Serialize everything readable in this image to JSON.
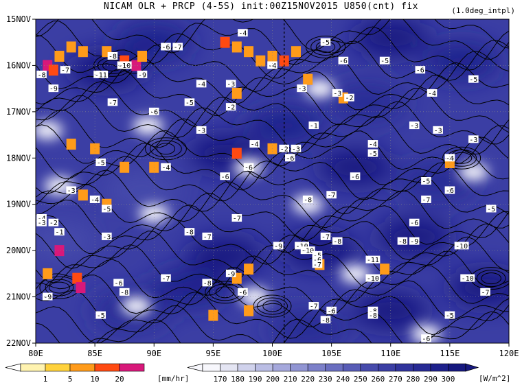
{
  "title": "NICAM  OLR + PRCP (4-5S) init:00Z15NOV2015 U850(cnt) fix",
  "subtitle": "(1.0deg_intpl)",
  "chart_data": {
    "type": "heatmap",
    "x_axis": {
      "range": [
        80,
        120
      ],
      "ticks": [
        80,
        85,
        90,
        95,
        100,
        105,
        110,
        115,
        120
      ],
      "tick_labels": [
        "80E",
        "85E",
        "90E",
        "95E",
        "100E",
        "105E",
        "110E",
        "115E",
        "120E"
      ]
    },
    "y_axis": {
      "range": [
        "15NOV",
        "22NOV"
      ],
      "ticks": [
        15,
        16,
        17,
        18,
        19,
        20,
        21,
        22
      ],
      "tick_labels": [
        "15NOV",
        "16NOV",
        "17NOV",
        "18NOV",
        "19NOV",
        "20NOV",
        "21NOV",
        "22NOV"
      ]
    },
    "vertical_line_lon": 101,
    "precip_scale": {
      "unit": "[mm/hr]",
      "levels": [
        "1",
        "5",
        "10",
        "20"
      ],
      "colors": [
        "#fff3b0",
        "#ffd23c",
        "#ff9b1a",
        "#ff4a12",
        "#d8187a"
      ]
    },
    "olr_scale": {
      "unit": "[W/m^2]",
      "levels": [
        "170",
        "180",
        "190",
        "200",
        "210",
        "220",
        "230",
        "240",
        "250",
        "260",
        "270",
        "280",
        "290",
        "300"
      ],
      "colors": [
        "#f7f7fc",
        "#e4e5f3",
        "#d0d2ec",
        "#babde4",
        "#a5a8dc",
        "#9195d3",
        "#7c80c9",
        "#6a6ec0",
        "#585cb6",
        "#474bac",
        "#3b3ea4",
        "#30339c",
        "#272a94",
        "#1e218c",
        "#16187f"
      ]
    },
    "olr_blobs": [
      {
        "lon": 86,
        "day": 16.1,
        "value": 300
      },
      {
        "lon": 90,
        "day": 15.5,
        "value": 290
      },
      {
        "lon": 110,
        "day": 15.4,
        "value": 300
      },
      {
        "lon": 116,
        "day": 15.9,
        "value": 290
      },
      {
        "lon": 101,
        "day": 17.3,
        "value": 290
      },
      {
        "lon": 108,
        "day": 16.8,
        "value": 280
      },
      {
        "lon": 96,
        "day": 17.9,
        "value": 300
      },
      {
        "lon": 107,
        "day": 18.2,
        "value": 300
      },
      {
        "lon": 114,
        "day": 18.5,
        "value": 280
      },
      {
        "lon": 89,
        "day": 18.7,
        "value": 250
      },
      {
        "lon": 96,
        "day": 20.1,
        "value": 300
      },
      {
        "lon": 104,
        "day": 20.0,
        "value": 300
      },
      {
        "lon": 112,
        "day": 19.7,
        "value": 300
      },
      {
        "lon": 118,
        "day": 20.8,
        "value": 300
      },
      {
        "lon": 110,
        "day": 21.3,
        "value": 300
      },
      {
        "lon": 88,
        "day": 21.3,
        "value": 280
      },
      {
        "lon": 93,
        "day": 20.8,
        "value": 290
      },
      {
        "lon": 103,
        "day": 21.7,
        "value": 280
      },
      {
        "lon": 82,
        "day": 19.8,
        "value": 250
      }
    ],
    "clear_spots": [
      {
        "lon": 81,
        "day": 17.4
      },
      {
        "lon": 89.5,
        "day": 17.3
      },
      {
        "lon": 98,
        "day": 18.2
      },
      {
        "lon": 82,
        "day": 18.6
      },
      {
        "lon": 90,
        "day": 19.2
      },
      {
        "lon": 103,
        "day": 19.0
      },
      {
        "lon": 98.5,
        "day": 21.0
      },
      {
        "lon": 113,
        "day": 21.8
      },
      {
        "lon": 88.5,
        "day": 21.2
      },
      {
        "lon": 104,
        "day": 16.5
      },
      {
        "lon": 107,
        "day": 20.5
      },
      {
        "lon": 117,
        "day": 18.3
      }
    ],
    "precip_cells": [
      {
        "lon": 81,
        "day": 16.0,
        "value": 20
      },
      {
        "lon": 81.5,
        "day": 16.1,
        "value": 10
      },
      {
        "lon": 82,
        "day": 15.8,
        "value": 5
      },
      {
        "lon": 83,
        "day": 15.6,
        "value": 5
      },
      {
        "lon": 84,
        "day": 15.7,
        "value": 5
      },
      {
        "lon": 86,
        "day": 15.7,
        "value": 5
      },
      {
        "lon": 87.5,
        "day": 15.9,
        "value": 10
      },
      {
        "lon": 88.5,
        "day": 16.0,
        "value": 20
      },
      {
        "lon": 89,
        "day": 15.8,
        "value": 5
      },
      {
        "lon": 96,
        "day": 15.5,
        "value": 10
      },
      {
        "lon": 97,
        "day": 15.6,
        "value": 5
      },
      {
        "lon": 98,
        "day": 15.7,
        "value": 5
      },
      {
        "lon": 99,
        "day": 15.9,
        "value": 5
      },
      {
        "lon": 100,
        "day": 15.8,
        "value": 5
      },
      {
        "lon": 101,
        "day": 15.9,
        "value": 10
      },
      {
        "lon": 102,
        "day": 15.7,
        "value": 5
      },
      {
        "lon": 103,
        "day": 16.3,
        "value": 5
      },
      {
        "lon": 106,
        "day": 16.7,
        "value": 5
      },
      {
        "lon": 83,
        "day": 17.7,
        "value": 5
      },
      {
        "lon": 85,
        "day": 17.8,
        "value": 5
      },
      {
        "lon": 87.5,
        "day": 18.2,
        "value": 5
      },
      {
        "lon": 90,
        "day": 18.2,
        "value": 5
      },
      {
        "lon": 97,
        "day": 17.9,
        "value": 10
      },
      {
        "lon": 100,
        "day": 17.8,
        "value": 5
      },
      {
        "lon": 84,
        "day": 18.8,
        "value": 5
      },
      {
        "lon": 86,
        "day": 19.0,
        "value": 5
      },
      {
        "lon": 81,
        "day": 20.5,
        "value": 5
      },
      {
        "lon": 83.5,
        "day": 20.6,
        "value": 10
      },
      {
        "lon": 83.8,
        "day": 20.8,
        "value": 20
      },
      {
        "lon": 82,
        "day": 20.0,
        "value": 20
      },
      {
        "lon": 97,
        "day": 20.6,
        "value": 5
      },
      {
        "lon": 98,
        "day": 20.4,
        "value": 5
      },
      {
        "lon": 98,
        "day": 21.3,
        "value": 5
      },
      {
        "lon": 95,
        "day": 21.4,
        "value": 5
      },
      {
        "lon": 104,
        "day": 20.3,
        "value": 5
      },
      {
        "lon": 109.5,
        "day": 20.4,
        "value": 5
      },
      {
        "lon": 115,
        "day": 18.1,
        "value": 5
      },
      {
        "lon": 97,
        "day": 16.6,
        "value": 5
      }
    ],
    "contour_labels": [
      {
        "text": "-4",
        "lon": 97.5,
        "day": 15.3
      },
      {
        "text": "-5",
        "lon": 104.5,
        "day": 15.5
      },
      {
        "text": "-8",
        "lon": 86.5,
        "day": 15.8
      },
      {
        "text": "-6",
        "lon": 91,
        "day": 15.6
      },
      {
        "text": "-7",
        "lon": 92,
        "day": 15.6
      },
      {
        "text": "-6",
        "lon": 106,
        "day": 15.9
      },
      {
        "text": "-5",
        "lon": 109.5,
        "day": 15.9
      },
      {
        "text": "-4",
        "lon": 100,
        "day": 16.0
      },
      {
        "text": "-6",
        "lon": 112.5,
        "day": 16.1
      },
      {
        "text": "-5",
        "lon": 117,
        "day": 16.3
      },
      {
        "text": "-10",
        "lon": 87.5,
        "day": 16.0
      },
      {
        "text": "-7",
        "lon": 82.5,
        "day": 16.1
      },
      {
        "text": "-11",
        "lon": 85.5,
        "day": 16.2
      },
      {
        "text": "-8",
        "lon": 80.5,
        "day": 16.2
      },
      {
        "text": "-9",
        "lon": 81.5,
        "day": 16.5
      },
      {
        "text": "-9",
        "lon": 89,
        "day": 16.2
      },
      {
        "text": "-4",
        "lon": 94,
        "day": 16.4
      },
      {
        "text": "-3",
        "lon": 96.5,
        "day": 16.4
      },
      {
        "text": "-3",
        "lon": 102.5,
        "day": 16.5
      },
      {
        "text": "-4",
        "lon": 113.5,
        "day": 16.6
      },
      {
        "text": "-7",
        "lon": 86.5,
        "day": 16.8
      },
      {
        "text": "-5",
        "lon": 93,
        "day": 16.8
      },
      {
        "text": "-2",
        "lon": 96.5,
        "day": 16.9
      },
      {
        "text": "-3",
        "lon": 105.5,
        "day": 16.6
      },
      {
        "text": "-2",
        "lon": 106.5,
        "day": 16.7
      },
      {
        "text": "-6",
        "lon": 90,
        "day": 17.0
      },
      {
        "text": "-3",
        "lon": 112,
        "day": 17.3
      },
      {
        "text": "-3",
        "lon": 94,
        "day": 17.4
      },
      {
        "text": "-1",
        "lon": 103.5,
        "day": 17.3
      },
      {
        "text": "-3",
        "lon": 114,
        "day": 17.4
      },
      {
        "text": "-3",
        "lon": 117,
        "day": 17.6
      },
      {
        "text": "-4",
        "lon": 98.5,
        "day": 17.7
      },
      {
        "text": "-2",
        "lon": 101,
        "day": 17.8
      },
      {
        "text": "-3",
        "lon": 102,
        "day": 17.8
      },
      {
        "text": "-4",
        "lon": 108.5,
        "day": 17.7
      },
      {
        "text": "-5",
        "lon": 108.5,
        "day": 17.9
      },
      {
        "text": "-5",
        "lon": 85.5,
        "day": 18.1
      },
      {
        "text": "-4",
        "lon": 91,
        "day": 18.2
      },
      {
        "text": "-6",
        "lon": 101.5,
        "day": 18.0
      },
      {
        "text": "-6",
        "lon": 96,
        "day": 18.4
      },
      {
        "text": "-6",
        "lon": 98,
        "day": 18.2
      },
      {
        "text": "-6",
        "lon": 107,
        "day": 18.4
      },
      {
        "text": "-4",
        "lon": 115,
        "day": 18.0
      },
      {
        "text": "-5",
        "lon": 113,
        "day": 18.5
      },
      {
        "text": "-7",
        "lon": 105,
        "day": 18.8
      },
      {
        "text": "-8",
        "lon": 103,
        "day": 18.9
      },
      {
        "text": "-7",
        "lon": 113,
        "day": 18.9
      },
      {
        "text": "-6",
        "lon": 115,
        "day": 18.7
      },
      {
        "text": "-5",
        "lon": 118.5,
        "day": 19.1
      },
      {
        "text": "-3",
        "lon": 83,
        "day": 18.7
      },
      {
        "text": "-4",
        "lon": 85,
        "day": 18.9
      },
      {
        "text": "-5",
        "lon": 86,
        "day": 19.1
      },
      {
        "text": "-3",
        "lon": 86,
        "day": 19.7
      },
      {
        "text": "-4",
        "lon": 80.5,
        "day": 19.3
      },
      {
        "text": "-3",
        "lon": 80.5,
        "day": 19.4
      },
      {
        "text": "-2",
        "lon": 81.5,
        "day": 19.4
      },
      {
        "text": "-1",
        "lon": 82,
        "day": 19.6
      },
      {
        "text": "-7",
        "lon": 97,
        "day": 19.3
      },
      {
        "text": "-6",
        "lon": 112,
        "day": 19.4
      },
      {
        "text": "-8",
        "lon": 93,
        "day": 19.6
      },
      {
        "text": "-7",
        "lon": 94.5,
        "day": 19.7
      },
      {
        "text": "-9",
        "lon": 100.5,
        "day": 19.9
      },
      {
        "text": "-10",
        "lon": 102.5,
        "day": 19.9
      },
      {
        "text": "-7",
        "lon": 104.5,
        "day": 19.7
      },
      {
        "text": "-8",
        "lon": 105.5,
        "day": 19.8
      },
      {
        "text": "-8",
        "lon": 111,
        "day": 19.8
      },
      {
        "text": "-9",
        "lon": 112,
        "day": 19.8
      },
      {
        "text": "-10",
        "lon": 116,
        "day": 19.9
      },
      {
        "text": "-10",
        "lon": 103,
        "day": 20.0
      },
      {
        "text": "-5",
        "lon": 103.8,
        "day": 20.1
      },
      {
        "text": "-6",
        "lon": 103.8,
        "day": 20.2
      },
      {
        "text": "-7",
        "lon": 103.8,
        "day": 20.3
      },
      {
        "text": "-11",
        "lon": 108.5,
        "day": 20.2
      },
      {
        "text": "-9",
        "lon": 96.5,
        "day": 20.5
      },
      {
        "text": "-7",
        "lon": 91,
        "day": 20.6
      },
      {
        "text": "-8",
        "lon": 94.5,
        "day": 20.7
      },
      {
        "text": "-6",
        "lon": 87,
        "day": 20.7
      },
      {
        "text": "-8",
        "lon": 87.5,
        "day": 20.9
      },
      {
        "text": "-10",
        "lon": 108.5,
        "day": 20.6
      },
      {
        "text": "-10",
        "lon": 116.5,
        "day": 20.6
      },
      {
        "text": "-6",
        "lon": 97.5,
        "day": 20.9
      },
      {
        "text": "-7",
        "lon": 118,
        "day": 20.9
      },
      {
        "text": "-9",
        "lon": 81,
        "day": 21.0
      },
      {
        "text": "-7",
        "lon": 103.5,
        "day": 21.2
      },
      {
        "text": "-5",
        "lon": 85.5,
        "day": 21.4
      },
      {
        "text": "-6",
        "lon": 105,
        "day": 21.3
      },
      {
        "text": "-8",
        "lon": 108.5,
        "day": 21.3
      },
      {
        "text": "-8",
        "lon": 108.5,
        "day": 21.4
      },
      {
        "text": "-5",
        "lon": 115,
        "day": 21.4
      },
      {
        "text": "-8",
        "lon": 104.5,
        "day": 21.5
      },
      {
        "text": "-6",
        "lon": 113,
        "day": 21.9
      }
    ]
  }
}
